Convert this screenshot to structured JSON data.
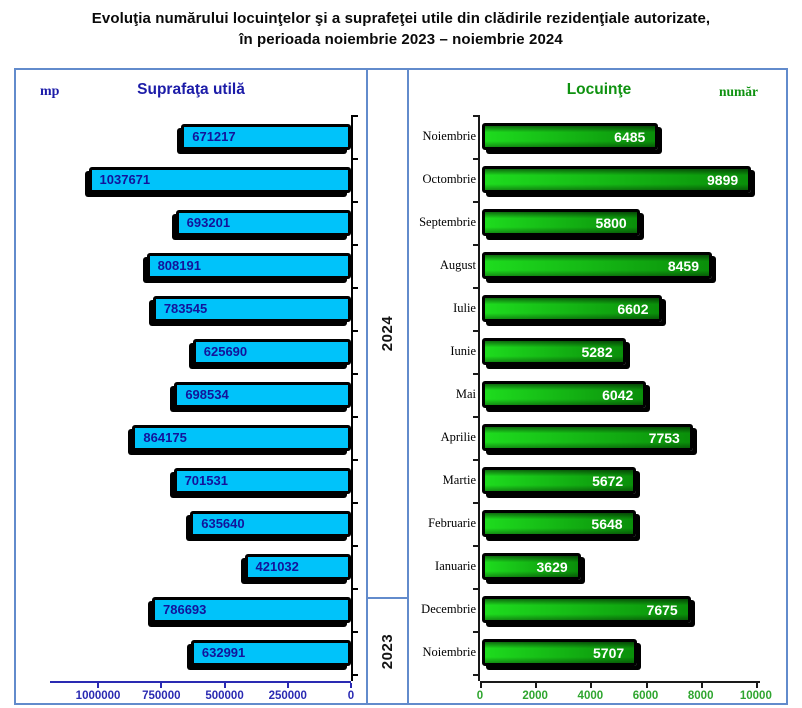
{
  "title": {
    "line1": "Evoluţia numărului locuinţelor şi a suprafeţei utile din clădirile rezidenţiale autorizate,",
    "line2": "în perioada noiembrie 2023 – noiembrie 2024"
  },
  "year_groups": [
    {
      "label": "2024",
      "rows": 11
    },
    {
      "label": "2023",
      "rows": 2
    }
  ],
  "colors": {
    "frame_blue": "#628bcc",
    "cyan_bar": "#00c3fa",
    "navy_text": "#1c1ca8",
    "green_text": "#0f9210",
    "green_bar_light": "#1edc1e",
    "green_bar_dark": "#0a8f0a",
    "axis_green": "#2fa52f",
    "axis_navy": "#2a2ab2"
  },
  "chart_data": [
    {
      "id": "suprafata-utila",
      "type": "bar",
      "orientation": "horizontal-right-to-left",
      "title": "Suprafaţa utilă",
      "unit_label": "mp",
      "categories": [
        "Noiembrie",
        "Octombrie",
        "Septembrie",
        "August",
        "Iulie",
        "Iunie",
        "Mai",
        "Aprilie",
        "Martie",
        "Februarie",
        "Ianuarie",
        "Decembrie",
        "Noiembrie"
      ],
      "values": [
        671217,
        1037671,
        693201,
        808191,
        783545,
        625690,
        698534,
        864175,
        701531,
        635640,
        421032,
        786693,
        632991
      ],
      "x_ticks": [
        1000000,
        750000,
        500000,
        250000,
        0
      ],
      "x_max": 1190000,
      "xlabel": "",
      "ylabel": "",
      "grid": false,
      "legend": "none"
    },
    {
      "id": "locuinte",
      "type": "bar",
      "orientation": "horizontal-left-to-right",
      "title": "Locuinţe",
      "unit_label": "număr",
      "categories": [
        "Noiembrie",
        "Octombrie",
        "Septembrie",
        "August",
        "Iulie",
        "Iunie",
        "Mai",
        "Aprilie",
        "Martie",
        "Februarie",
        "Ianuarie",
        "Decembrie",
        "Noiembrie"
      ],
      "values": [
        6485,
        9899,
        5800,
        8459,
        6602,
        5282,
        6042,
        7753,
        5672,
        5648,
        3629,
        7675,
        5707
      ],
      "x_ticks": [
        0,
        2000,
        4000,
        6000,
        8000,
        10000
      ],
      "x_max": 10150,
      "xlabel": "",
      "ylabel": "",
      "grid": false,
      "legend": "none"
    }
  ]
}
